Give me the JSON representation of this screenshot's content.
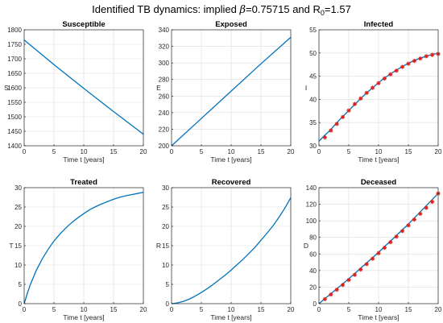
{
  "figure": {
    "title_prefix": "Identified TB dynamics: implied ",
    "title_beta_symbol": "β",
    "title_beta_value": "=0.75715",
    "title_mid": " and R",
    "title_r_sub": "0",
    "title_r_value": "=1.57",
    "line_color": "#0072bd",
    "marker_color": "#e0201b"
  },
  "chart_data": [
    {
      "type": "line",
      "title": "Susceptible",
      "xlabel": "Time t [years]",
      "ylabel": "S",
      "xlim": [
        0,
        20
      ],
      "ylim": [
        1400,
        1800
      ],
      "grid": true,
      "xticks": [
        0,
        5,
        10,
        15,
        20
      ],
      "yticks": [
        1400,
        1450,
        1500,
        1550,
        1600,
        1650,
        1700,
        1750,
        1800
      ],
      "series": [
        {
          "values": [
            [
              0,
              1765
            ],
            [
              5,
              1680
            ],
            [
              10,
              1598
            ],
            [
              15,
              1518
            ],
            [
              20,
              1440
            ]
          ]
        }
      ]
    },
    {
      "type": "line",
      "title": "Exposed",
      "xlabel": "Time t [years]",
      "ylabel": "E",
      "xlim": [
        0,
        20
      ],
      "ylim": [
        200,
        340
      ],
      "grid": true,
      "xticks": [
        0,
        5,
        10,
        15,
        20
      ],
      "yticks": [
        200,
        220,
        240,
        260,
        280,
        300,
        320,
        340
      ],
      "series": [
        {
          "values": [
            [
              0,
              200
            ],
            [
              5,
              233
            ],
            [
              10,
              266
            ],
            [
              15,
              299
            ],
            [
              20,
              331
            ]
          ]
        }
      ]
    },
    {
      "type": "line",
      "title": "Infected",
      "xlabel": "Time t [years]",
      "ylabel": "I",
      "xlim": [
        0,
        20
      ],
      "ylim": [
        30,
        55
      ],
      "grid": true,
      "xticks": [
        0,
        5,
        10,
        15,
        20
      ],
      "yticks": [
        30,
        35,
        40,
        45,
        50,
        55
      ],
      "series": [
        {
          "values": [
            [
              0,
              31
            ],
            [
              1,
              32.3
            ],
            [
              2,
              33.5
            ],
            [
              3,
              35.0
            ],
            [
              4,
              36.3
            ],
            [
              5,
              37.6
            ],
            [
              6,
              38.9
            ],
            [
              7,
              40.2
            ],
            [
              8,
              41.4
            ],
            [
              9,
              42.5
            ],
            [
              10,
              43.6
            ],
            [
              11,
              44.6
            ],
            [
              12,
              45.5
            ],
            [
              13,
              46.3
            ],
            [
              14,
              47.1
            ],
            [
              15,
              47.8
            ],
            [
              16,
              48.4
            ],
            [
              17,
              48.9
            ],
            [
              18,
              49.3
            ],
            [
              19,
              49.7
            ],
            [
              20,
              49.9
            ]
          ]
        }
      ],
      "markers": [
        [
          1,
          31.8
        ],
        [
          2,
          33.3
        ],
        [
          3,
          34.7
        ],
        [
          4,
          36.2
        ],
        [
          5,
          37.6
        ],
        [
          6,
          39.0
        ],
        [
          7,
          40.2
        ],
        [
          8,
          41.4
        ],
        [
          9,
          42.5
        ],
        [
          10,
          43.5
        ],
        [
          11,
          44.5
        ],
        [
          12,
          45.4
        ],
        [
          13,
          46.2
        ],
        [
          14,
          47.0
        ],
        [
          15,
          47.7
        ],
        [
          16,
          48.3
        ],
        [
          17,
          48.8
        ],
        [
          18,
          49.3
        ],
        [
          19,
          49.6
        ],
        [
          20,
          49.8
        ]
      ]
    },
    {
      "type": "line",
      "title": "Treated",
      "xlabel": "Time t [years]",
      "ylabel": "T",
      "xlim": [
        0,
        20
      ],
      "ylim": [
        0,
        30
      ],
      "grid": true,
      "xticks": [
        0,
        5,
        10,
        15,
        20
      ],
      "yticks": [
        0,
        5,
        10,
        15,
        20,
        25,
        30
      ],
      "series": [
        {
          "values": [
            [
              0,
              0
            ],
            [
              0.5,
              2.5
            ],
            [
              1,
              4.8
            ],
            [
              2,
              8.5
            ],
            [
              3,
              11.5
            ],
            [
              4,
              14.0
            ],
            [
              5,
              16.2
            ],
            [
              6,
              18.0
            ],
            [
              7,
              19.6
            ],
            [
              8,
              21.0
            ],
            [
              9,
              22.2
            ],
            [
              10,
              23.3
            ],
            [
              11,
              24.3
            ],
            [
              12,
              25.1
            ],
            [
              13,
              25.8
            ],
            [
              14,
              26.4
            ],
            [
              15,
              27.0
            ],
            [
              16,
              27.5
            ],
            [
              17,
              27.9
            ],
            [
              18,
              28.2
            ],
            [
              19,
              28.5
            ],
            [
              20,
              28.8
            ]
          ]
        }
      ]
    },
    {
      "type": "line",
      "title": "Recovered",
      "xlabel": "Time t [years]",
      "ylabel": "R",
      "xlim": [
        0,
        20
      ],
      "ylim": [
        0,
        30
      ],
      "grid": true,
      "xticks": [
        0,
        5,
        10,
        15,
        20
      ],
      "yticks": [
        0,
        5,
        10,
        15,
        20,
        25,
        30
      ],
      "series": [
        {
          "values": [
            [
              0,
              0
            ],
            [
              1,
              0.2
            ],
            [
              2,
              0.6
            ],
            [
              3,
              1.2
            ],
            [
              4,
              2.0
            ],
            [
              5,
              2.9
            ],
            [
              6,
              3.9
            ],
            [
              7,
              5.0
            ],
            [
              8,
              6.2
            ],
            [
              9,
              7.4
            ],
            [
              10,
              8.7
            ],
            [
              11,
              10.1
            ],
            [
              12,
              11.5
            ],
            [
              13,
              13.0
            ],
            [
              14,
              14.6
            ],
            [
              15,
              16.4
            ],
            [
              16,
              18.2
            ],
            [
              17,
              20.1
            ],
            [
              18,
              22.3
            ],
            [
              19,
              24.7
            ],
            [
              20,
              27.4
            ]
          ]
        }
      ]
    },
    {
      "type": "line",
      "title": "Deceased",
      "xlabel": "Time t [years]",
      "ylabel": "D",
      "xlim": [
        0,
        20
      ],
      "ylim": [
        0,
        140
      ],
      "grid": true,
      "xticks": [
        0,
        5,
        10,
        15,
        20
      ],
      "yticks": [
        0,
        20,
        40,
        60,
        80,
        100,
        120,
        140
      ],
      "series": [
        {
          "values": [
            [
              0,
              0
            ],
            [
              5,
              30
            ],
            [
              10,
              62
            ],
            [
              15,
              96
            ],
            [
              20,
              133
            ]
          ]
        }
      ],
      "markers": [
        [
          1,
          5.5
        ],
        [
          2,
          11
        ],
        [
          3,
          16.8
        ],
        [
          4,
          22.6
        ],
        [
          5,
          28.6
        ],
        [
          6,
          34.8
        ],
        [
          7,
          41.2
        ],
        [
          8,
          47.7
        ],
        [
          9,
          54.3
        ],
        [
          10,
          60.9
        ],
        [
          11,
          67.5
        ],
        [
          12,
          74.2
        ],
        [
          13,
          80.9
        ],
        [
          14,
          87.7
        ],
        [
          15,
          94.5
        ],
        [
          16,
          101.5
        ],
        [
          17,
          108.5
        ],
        [
          18,
          115.7
        ],
        [
          19,
          123
        ],
        [
          20,
          133
        ]
      ]
    }
  ]
}
